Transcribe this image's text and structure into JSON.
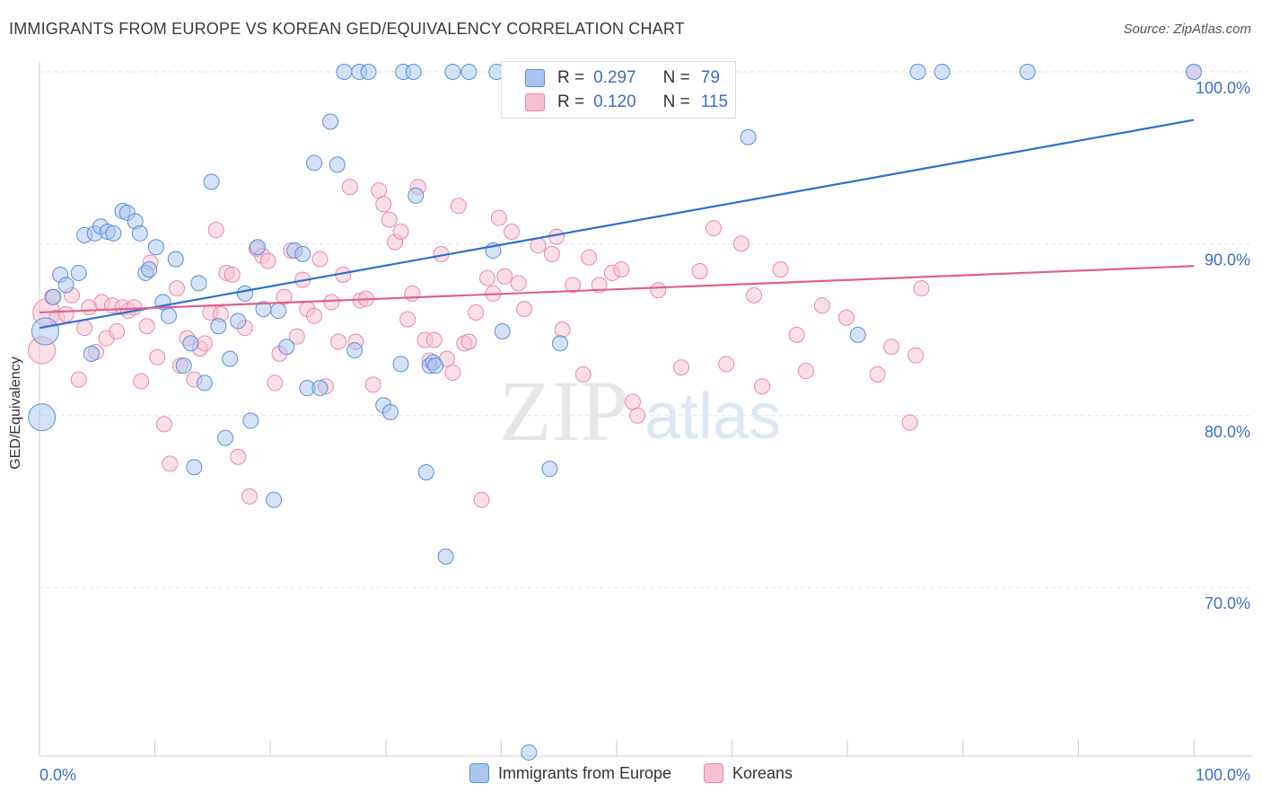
{
  "header": {
    "title": "IMMIGRANTS FROM EUROPE VS KOREAN GED/EQUIVALENCY CORRELATION CHART",
    "source": "Source: ZipAtlas.com"
  },
  "watermark": {
    "zip": "ZIP",
    "atlas": "atlas"
  },
  "colors": {
    "europe_fill": "#a9c6f0",
    "europe_stroke": "#5b8fd6",
    "europe_line": "#2b6fd0",
    "korean_fill": "#f6bfd2",
    "korean_stroke": "#e889aa",
    "korean_line": "#e0608f",
    "tick_label": "#3b6fc7",
    "grid": "#e0e0e0"
  },
  "legend": {
    "r_label": "R =",
    "n_label": "N =",
    "europe": {
      "r": "0.297",
      "n": "79"
    },
    "korean": {
      "r": "0.120",
      "n": "115"
    }
  },
  "chart_data": {
    "type": "scatter",
    "title": "IMMIGRANTS FROM EUROPE VS KOREAN GED/EQUIVALENCY CORRELATION CHART",
    "xlabel": "",
    "ylabel": "GED/Equivalency",
    "xlim": [
      0,
      100
    ],
    "ylim": [
      60.5,
      102
    ],
    "x_tick_labels": [
      "0.0%",
      "100.0%"
    ],
    "y_ticks": [
      70,
      80,
      90,
      100
    ],
    "y_tick_labels": [
      "70.0%",
      "80.0%",
      "90.0%",
      "100.0%"
    ],
    "grid": true,
    "legend_position": "top-center",
    "series": [
      {
        "name": "Immigrants from Europe",
        "r": 0.297,
        "n": 79,
        "trend": {
          "x": [
            0,
            100
          ],
          "y": [
            85.1,
            97.2
          ]
        },
        "x": [
          0.2,
          0.5,
          1.2,
          1.8,
          2.3,
          3.4,
          3.9,
          4.5,
          4.8,
          5.3,
          5.9,
          6.4,
          7.2,
          7.6,
          8.3,
          8.7,
          9.2,
          9.5,
          10.1,
          10.7,
          11.2,
          11.8,
          12.5,
          13.1,
          13.4,
          13.8,
          14.3,
          14.9,
          15.5,
          16.1,
          16.5,
          17.2,
          17.8,
          18.3,
          18.9,
          19.4,
          20.3,
          20.7,
          21.4,
          22.1,
          22.8,
          23.2,
          23.8,
          24.3,
          25.2,
          25.8,
          26.4,
          27.3,
          27.7,
          28.5,
          29.8,
          30.4,
          31.3,
          31.5,
          32.4,
          32.6,
          33.5,
          33.8,
          34.1,
          34.3,
          35.2,
          35.8,
          37.2,
          39.3,
          39.6,
          40.1,
          41.3,
          42.4,
          44.2,
          45.1,
          47.4,
          50.1,
          55.8,
          61.4,
          70.9,
          76.1,
          78.2,
          85.6,
          100.0
        ],
        "y": [
          79.9,
          84.9,
          86.9,
          88.2,
          87.6,
          88.3,
          90.5,
          83.6,
          90.6,
          91.0,
          90.7,
          90.6,
          91.9,
          91.8,
          91.3,
          90.6,
          88.3,
          88.5,
          89.8,
          86.6,
          85.8,
          89.1,
          82.9,
          84.2,
          77.0,
          87.7,
          81.9,
          93.6,
          85.2,
          78.7,
          83.3,
          85.5,
          87.1,
          79.7,
          89.8,
          86.2,
          75.1,
          86.1,
          84.0,
          89.6,
          89.4,
          81.6,
          94.7,
          81.6,
          97.1,
          94.6,
          100.0,
          83.8,
          100.0,
          100.0,
          80.6,
          80.2,
          83.0,
          100.0,
          100.0,
          92.8,
          76.7,
          82.9,
          83.1,
          82.9,
          71.8,
          100.0,
          100.0,
          89.6,
          100.0,
          84.9,
          100.0,
          60.4,
          76.9,
          84.2,
          100.0,
          98.4,
          100.0,
          96.2,
          84.7,
          100.0,
          100.0,
          100.0,
          100.0
        ]
      },
      {
        "name": "Koreans",
        "r": 0.12,
        "n": 115,
        "trend": {
          "x": [
            0,
            100
          ],
          "y": [
            86.0,
            88.7
          ]
        },
        "x": [
          0.2,
          0.6,
          1.1,
          1.5,
          2.3,
          2.8,
          3.4,
          3.9,
          4.3,
          4.9,
          5.4,
          5.8,
          6.3,
          6.7,
          7.2,
          7.7,
          8.2,
          8.8,
          9.3,
          9.6,
          10.2,
          10.8,
          11.3,
          11.9,
          12.2,
          12.8,
          13.4,
          13.9,
          14.3,
          14.8,
          15.3,
          15.7,
          16.2,
          16.7,
          17.2,
          17.8,
          18.2,
          18.8,
          19.3,
          19.8,
          20.4,
          20.8,
          21.2,
          21.8,
          22.3,
          22.8,
          23.2,
          23.8,
          24.3,
          24.8,
          25.3,
          25.9,
          26.3,
          26.9,
          27.4,
          27.8,
          28.3,
          28.9,
          29.4,
          29.8,
          30.3,
          30.8,
          31.3,
          31.9,
          32.3,
          32.8,
          33.4,
          33.8,
          34.2,
          34.8,
          35.3,
          35.8,
          36.3,
          36.8,
          37.2,
          37.8,
          38.3,
          38.8,
          39.3,
          39.8,
          40.3,
          40.9,
          41.5,
          42.0,
          43.2,
          44.4,
          44.8,
          45.3,
          46.2,
          47.1,
          47.6,
          48.5,
          49.6,
          50.4,
          51.4,
          51.8,
          53.6,
          55.6,
          57.2,
          58.4,
          59.5,
          60.8,
          61.9,
          62.6,
          64.2,
          65.6,
          66.4,
          67.8,
          69.9,
          72.6,
          73.8,
          75.4,
          75.9,
          76.4,
          100.0
        ],
        "y": [
          83.8,
          86.0,
          86.9,
          85.7,
          85.9,
          87.0,
          82.1,
          85.1,
          86.3,
          83.7,
          86.6,
          84.5,
          86.4,
          84.9,
          86.3,
          86.1,
          86.3,
          82.0,
          85.2,
          88.9,
          83.4,
          79.5,
          77.2,
          87.4,
          82.9,
          84.5,
          82.1,
          83.9,
          84.2,
          86.0,
          90.8,
          85.9,
          88.3,
          88.2,
          77.6,
          85.1,
          75.3,
          89.7,
          89.3,
          89.0,
          81.9,
          83.6,
          86.9,
          89.6,
          84.6,
          87.9,
          86.2,
          85.8,
          89.1,
          81.7,
          86.6,
          84.3,
          88.2,
          93.3,
          84.3,
          86.7,
          86.8,
          81.8,
          93.1,
          92.3,
          91.4,
          90.1,
          90.7,
          85.6,
          87.1,
          93.3,
          84.4,
          83.2,
          84.4,
          89.4,
          83.3,
          82.5,
          92.2,
          84.2,
          84.3,
          86.0,
          75.1,
          88.0,
          87.1,
          91.5,
          88.1,
          90.7,
          87.7,
          86.2,
          89.9,
          89.4,
          90.4,
          85.0,
          87.6,
          82.4,
          89.2,
          87.6,
          88.3,
          88.5,
          80.8,
          80.0,
          87.3,
          82.8,
          88.4,
          90.9,
          83.0,
          90.0,
          87.0,
          81.7,
          88.5,
          84.7,
          82.6,
          86.4,
          85.7,
          82.4,
          84.0,
          79.6,
          83.5,
          87.4,
          100.0
        ]
      }
    ]
  },
  "bottom_legend": {
    "europe": "Immigrants from Europe",
    "korean": "Koreans"
  }
}
